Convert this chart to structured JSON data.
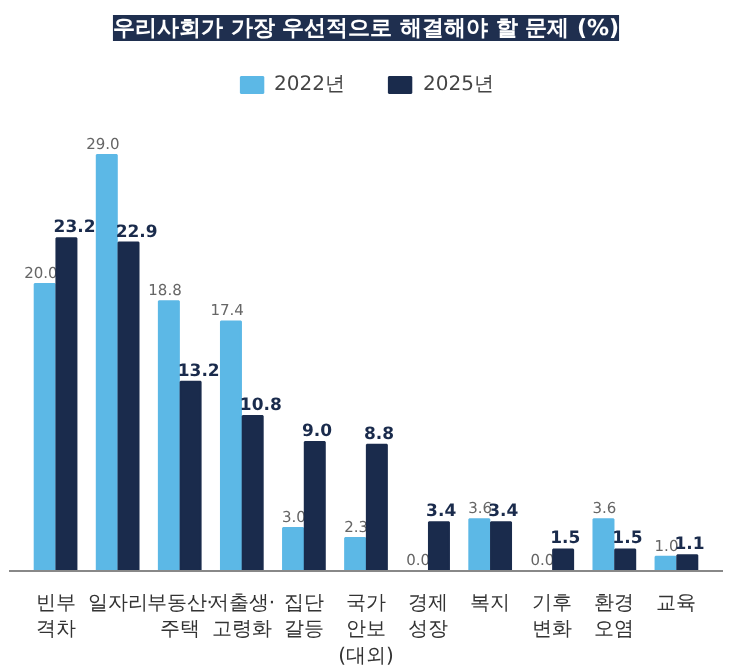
{
  "chart_data": {
    "type": "bar",
    "title": "우리사회가 가장 우선적으로 해결해야 할 문제 (%)",
    "categories": [
      "빈부\n격차",
      "일자리",
      "부동산·\n주택",
      "저출생·\n고령화",
      "집단\n갈등",
      "국가\n안보\n(대외)",
      "경제\n성장",
      "복지",
      "기후\n변화",
      "환경\n오염",
      "교육"
    ],
    "series": [
      {
        "name": "2022년",
        "color": "#5cb8e6",
        "values": [
          20.0,
          29.0,
          18.8,
          17.4,
          3.0,
          2.3,
          0.0,
          3.6,
          0.0,
          3.6,
          1.0
        ],
        "value_labels": [
          "20.0",
          "29.0",
          "18.8",
          "17.4",
          "3.0",
          "2.3",
          "0.0",
          "3.6",
          "0.0",
          "3.6",
          "1.0"
        ]
      },
      {
        "name": "2025년",
        "color": "#1a2b4c",
        "values": [
          23.2,
          22.9,
          13.2,
          10.8,
          9.0,
          8.8,
          3.4,
          3.4,
          1.5,
          1.5,
          1.1
        ],
        "value_labels": [
          "23.2",
          "22.9",
          "13.2",
          "10.8",
          "9.0",
          "8.8",
          "3.4",
          "3.4",
          "1.5",
          "1.5",
          "1.1"
        ]
      }
    ],
    "legend": "top",
    "grid": false
  }
}
